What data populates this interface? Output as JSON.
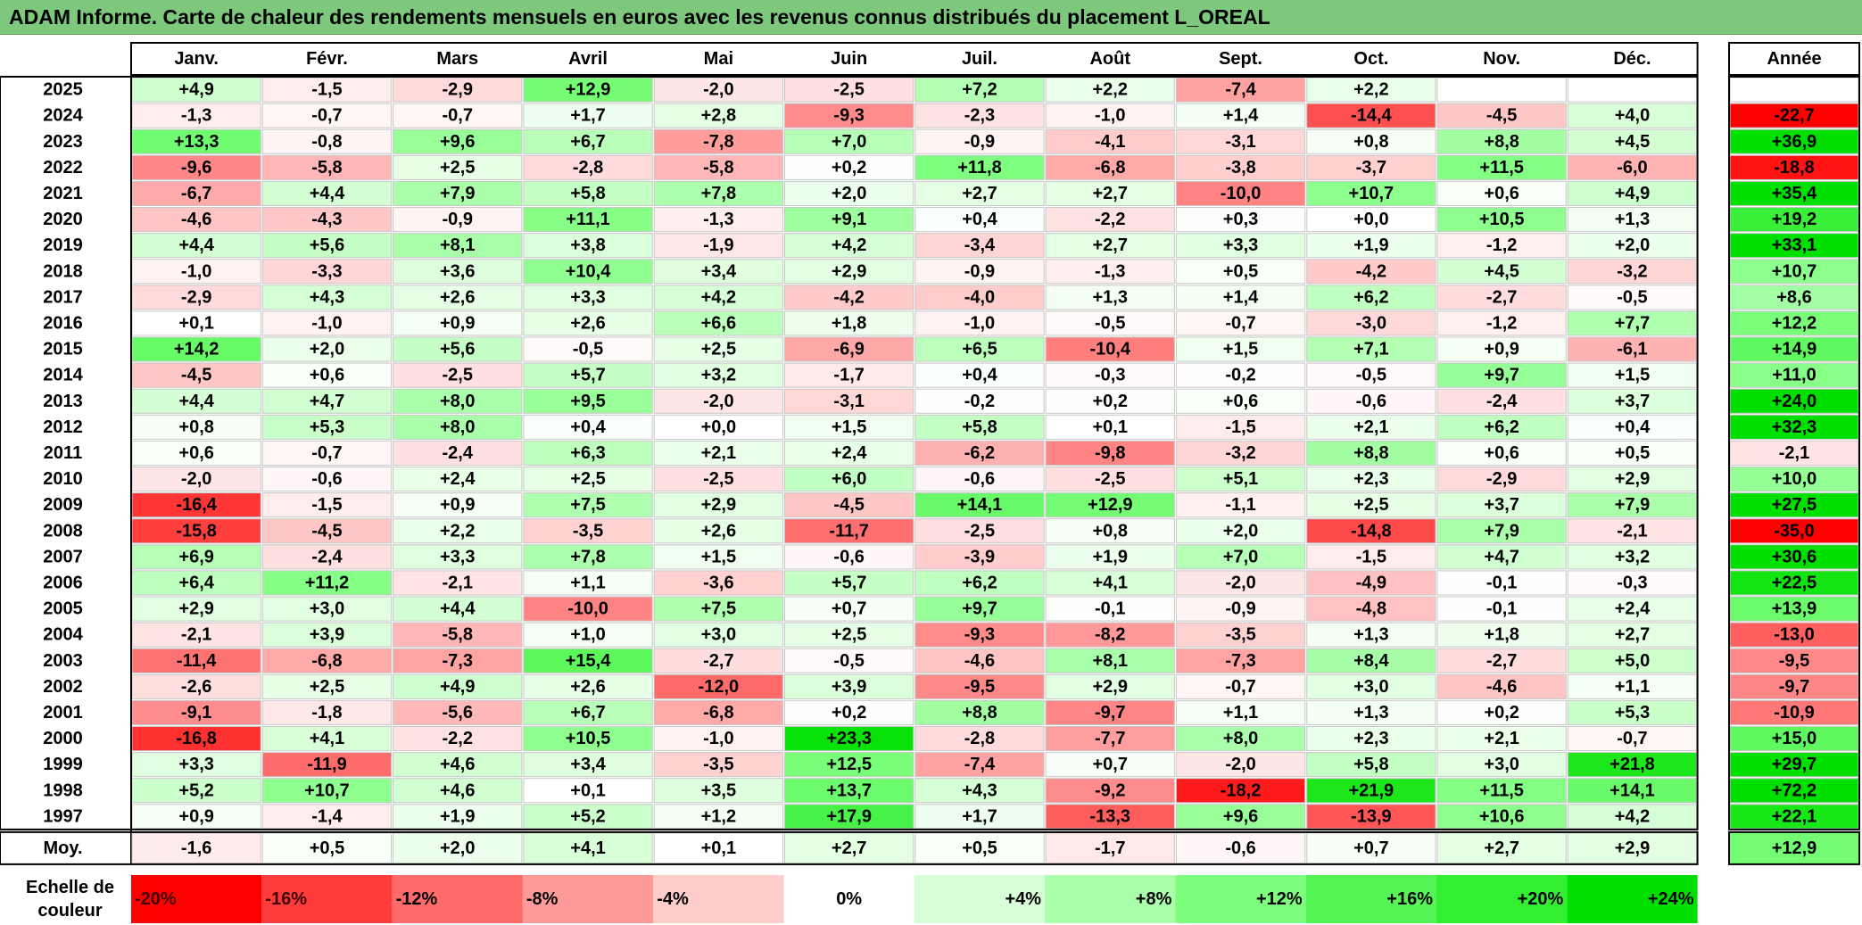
{
  "title": "ADAM Informe. Carte de chaleur des rendements mensuels en euros avec les revenus connus distribués du placement L_OREAL",
  "chart_data": {
    "type": "heatmap",
    "months": [
      "Janv.",
      "Févr.",
      "Mars",
      "Avril",
      "Mai",
      "Juin",
      "Juil.",
      "Août",
      "Sept.",
      "Oct.",
      "Nov.",
      "Déc."
    ],
    "year_header": "Année",
    "avg_label": "Moy.",
    "scale_label": [
      "Echelle de",
      "couleur"
    ],
    "rows": [
      {
        "year": "2025",
        "values": [
          4.9,
          -1.5,
          -2.9,
          12.9,
          -2.0,
          -2.5,
          7.2,
          2.2,
          -7.4,
          2.2,
          null,
          null
        ],
        "annual": null
      },
      {
        "year": "2024",
        "values": [
          -1.3,
          -0.7,
          -0.7,
          1.7,
          2.8,
          -9.3,
          -2.3,
          -1.0,
          1.4,
          -14.4,
          -4.5,
          4.0
        ],
        "annual": -22.7
      },
      {
        "year": "2023",
        "values": [
          13.3,
          -0.8,
          9.6,
          6.7,
          -7.8,
          7.0,
          -0.9,
          -4.1,
          -3.1,
          0.8,
          8.8,
          4.5
        ],
        "annual": 36.9
      },
      {
        "year": "2022",
        "values": [
          -9.6,
          -5.8,
          2.5,
          -2.8,
          -5.8,
          0.2,
          11.8,
          -6.8,
          -3.8,
          -3.7,
          11.5,
          -6.0
        ],
        "annual": -18.8
      },
      {
        "year": "2021",
        "values": [
          -6.7,
          4.4,
          7.9,
          5.8,
          7.8,
          2.0,
          2.7,
          2.7,
          -10.0,
          10.7,
          0.6,
          4.9
        ],
        "annual": 35.4
      },
      {
        "year": "2020",
        "values": [
          -4.6,
          -4.3,
          -0.9,
          11.1,
          -1.3,
          9.1,
          0.4,
          -2.2,
          0.3,
          0.0,
          10.5,
          1.3
        ],
        "annual": 19.2
      },
      {
        "year": "2019",
        "values": [
          4.4,
          5.6,
          8.1,
          3.8,
          -1.9,
          4.2,
          -3.4,
          2.7,
          3.3,
          1.9,
          -1.2,
          2.0
        ],
        "annual": 33.1
      },
      {
        "year": "2018",
        "values": [
          -1.0,
          -3.3,
          3.6,
          10.4,
          3.4,
          2.9,
          -0.9,
          -1.3,
          0.5,
          -4.2,
          4.5,
          -3.2
        ],
        "annual": 10.7
      },
      {
        "year": "2017",
        "values": [
          -2.9,
          4.3,
          2.6,
          3.3,
          4.2,
          -4.2,
          -4.0,
          1.3,
          1.4,
          6.2,
          -2.7,
          -0.5
        ],
        "annual": 8.6
      },
      {
        "year": "2016",
        "values": [
          0.1,
          -1.0,
          0.9,
          2.6,
          6.6,
          1.8,
          -1.0,
          -0.5,
          -0.7,
          -3.0,
          -1.2,
          7.7
        ],
        "annual": 12.2
      },
      {
        "year": "2015",
        "values": [
          14.2,
          2.0,
          5.6,
          -0.5,
          2.5,
          -6.9,
          6.5,
          -10.4,
          1.5,
          7.1,
          0.9,
          -6.1
        ],
        "annual": 14.9
      },
      {
        "year": "2014",
        "values": [
          -4.5,
          0.6,
          -2.5,
          5.7,
          3.2,
          -1.7,
          0.4,
          -0.3,
          -0.2,
          -0.5,
          9.7,
          1.5
        ],
        "annual": 11.0
      },
      {
        "year": "2013",
        "values": [
          4.4,
          4.7,
          8.0,
          9.5,
          -2.0,
          -3.1,
          -0.2,
          0.2,
          0.6,
          -0.6,
          -2.4,
          3.7
        ],
        "annual": 24.0
      },
      {
        "year": "2012",
        "values": [
          0.8,
          5.3,
          8.0,
          0.4,
          0.0,
          1.5,
          5.8,
          0.1,
          -1.5,
          2.1,
          6.2,
          0.4
        ],
        "annual": 32.3
      },
      {
        "year": "2011",
        "values": [
          0.6,
          -0.7,
          -2.4,
          6.3,
          2.1,
          2.4,
          -6.2,
          -9.8,
          -3.2,
          8.8,
          0.6,
          0.5
        ],
        "annual": -2.1
      },
      {
        "year": "2010",
        "values": [
          -2.0,
          -0.6,
          2.4,
          2.5,
          -2.5,
          6.0,
          -0.6,
          -2.5,
          5.1,
          2.3,
          -2.9,
          2.9
        ],
        "annual": 10.0
      },
      {
        "year": "2009",
        "values": [
          -16.4,
          -1.5,
          0.9,
          7.5,
          2.9,
          -4.5,
          14.1,
          12.9,
          -1.1,
          2.5,
          3.7,
          7.9
        ],
        "annual": 27.5
      },
      {
        "year": "2008",
        "values": [
          -15.8,
          -4.5,
          2.2,
          -3.5,
          2.6,
          -11.7,
          -2.5,
          0.8,
          2.0,
          -14.8,
          7.9,
          -2.1
        ],
        "annual": -35.0
      },
      {
        "year": "2007",
        "values": [
          6.9,
          -2.4,
          3.3,
          7.8,
          1.5,
          -0.6,
          -3.9,
          1.9,
          7.0,
          -1.5,
          4.7,
          3.2
        ],
        "annual": 30.6
      },
      {
        "year": "2006",
        "values": [
          6.4,
          11.2,
          -2.1,
          1.1,
          -3.6,
          5.7,
          6.2,
          4.1,
          -2.0,
          -4.9,
          -0.1,
          -0.3
        ],
        "annual": 22.5
      },
      {
        "year": "2005",
        "values": [
          2.9,
          3.0,
          4.4,
          -10.0,
          7.5,
          0.7,
          9.7,
          -0.1,
          -0.9,
          -4.8,
          -0.1,
          2.4
        ],
        "annual": 13.9
      },
      {
        "year": "2004",
        "values": [
          -2.1,
          3.9,
          -5.8,
          1.0,
          3.0,
          2.5,
          -9.3,
          -8.2,
          -3.5,
          1.3,
          1.8,
          2.7
        ],
        "annual": -13.0
      },
      {
        "year": "2003",
        "values": [
          -11.4,
          -6.8,
          -7.3,
          15.4,
          -2.7,
          -0.5,
          -4.6,
          8.1,
          -7.3,
          8.4,
          -2.7,
          5.0
        ],
        "annual": -9.5
      },
      {
        "year": "2002",
        "values": [
          -2.6,
          2.5,
          4.9,
          2.6,
          -12.0,
          3.9,
          -9.5,
          2.9,
          -0.7,
          3.0,
          -4.6,
          1.1
        ],
        "annual": -9.7
      },
      {
        "year": "2001",
        "values": [
          -9.1,
          -1.8,
          -5.6,
          6.7,
          -6.8,
          0.2,
          8.8,
          -9.7,
          1.1,
          1.3,
          0.2,
          5.3
        ],
        "annual": -10.9
      },
      {
        "year": "2000",
        "values": [
          -16.8,
          4.1,
          -2.2,
          10.5,
          -1.0,
          23.3,
          -2.8,
          -7.7,
          8.0,
          2.3,
          2.1,
          -0.7
        ],
        "annual": 15.0
      },
      {
        "year": "1999",
        "values": [
          3.3,
          -11.9,
          4.6,
          3.4,
          -3.5,
          12.5,
          -7.4,
          0.7,
          -2.0,
          5.8,
          3.0,
          21.8
        ],
        "annual": 29.7
      },
      {
        "year": "1998",
        "values": [
          5.2,
          10.7,
          4.6,
          0.1,
          3.5,
          13.7,
          4.3,
          -9.2,
          -18.2,
          21.9,
          11.5,
          14.1
        ],
        "annual": 72.2
      },
      {
        "year": "1997",
        "values": [
          0.9,
          -1.4,
          1.9,
          5.2,
          1.2,
          17.9,
          1.7,
          -13.3,
          9.6,
          -13.9,
          10.6,
          4.2
        ],
        "annual": 22.1
      }
    ],
    "averages": [
      -1.6,
      0.5,
      2.0,
      4.1,
      0.1,
      2.7,
      0.5,
      -1.7,
      -0.6,
      0.7,
      2.7,
      2.9
    ],
    "annual_average": 12.9,
    "scale": [
      {
        "label": "-20%",
        "value": -20,
        "color": "#ff0000"
      },
      {
        "label": "-16%",
        "value": -16,
        "color": "#ff3c3c"
      },
      {
        "label": "-12%",
        "value": -12,
        "color": "#ff6b6b"
      },
      {
        "label": "-8%",
        "value": -8,
        "color": "#ff9a9a"
      },
      {
        "label": "-4%",
        "value": -4,
        "color": "#ffcccc"
      },
      {
        "label": "0%",
        "value": 0,
        "color": "#ffffff"
      },
      {
        "label": "+4%",
        "value": 4,
        "color": "#d9ffd9"
      },
      {
        "label": "+8%",
        "value": 8,
        "color": "#aaffaa"
      },
      {
        "label": "+12%",
        "value": 12,
        "color": "#7dff7d"
      },
      {
        "label": "+16%",
        "value": 16,
        "color": "#55f555"
      },
      {
        "label": "+20%",
        "value": 20,
        "color": "#33ee33"
      },
      {
        "label": "+24%",
        "value": 24,
        "color": "#00e000"
      }
    ]
  }
}
